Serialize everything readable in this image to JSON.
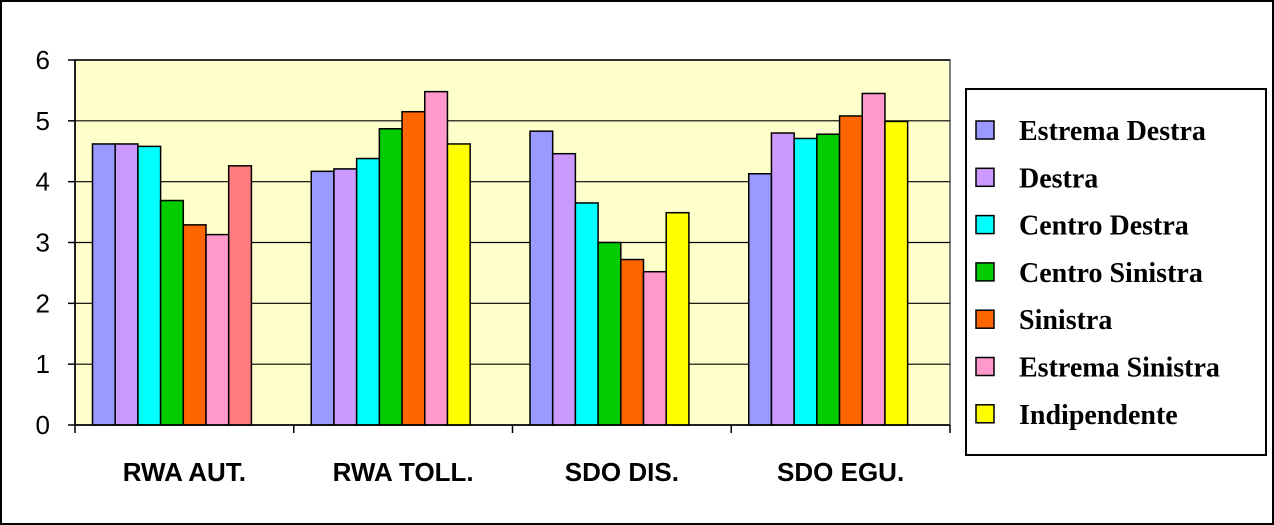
{
  "chart_data": {
    "type": "bar",
    "categories": [
      "RWA AUT.",
      "RWA TOLL.",
      "SDO DIS.",
      "SDO EGU."
    ],
    "series": [
      {
        "name": "Estrema Destra",
        "color": "#9999ff",
        "values": [
          4.62,
          4.17,
          4.83,
          4.13
        ]
      },
      {
        "name": "Destra",
        "color": "#cc99ff",
        "values": [
          4.62,
          4.21,
          4.46,
          4.8
        ]
      },
      {
        "name": "Centro Destra",
        "color": "#00ffff",
        "values": [
          4.58,
          4.38,
          3.65,
          4.71
        ]
      },
      {
        "name": "Centro Sinistra",
        "color": "#00cc00",
        "values": [
          3.69,
          4.87,
          3.0,
          4.78
        ]
      },
      {
        "name": "Sinistra",
        "color": "#ff6600",
        "values": [
          3.29,
          5.15,
          2.72,
          5.08
        ]
      },
      {
        "name": "Estrema Sinistra",
        "color": "#ff99cc",
        "values": [
          3.13,
          5.48,
          2.52,
          5.45
        ]
      },
      {
        "name": "Indipendente",
        "color": "#ffff00",
        "values": [
          4.26,
          4.62,
          3.49,
          4.99
        ]
      }
    ],
    "highlight_point": {
      "series": 6,
      "category": 0,
      "color": "#ff7c80"
    },
    "y_ticks": [
      "0",
      "1",
      "2",
      "3",
      "4",
      "5",
      "6"
    ],
    "ylim": [
      0,
      6
    ],
    "grid": true,
    "plot_background": "#ffffcc",
    "legend_position": "right",
    "title": "",
    "xlabel": "",
    "ylabel": ""
  }
}
